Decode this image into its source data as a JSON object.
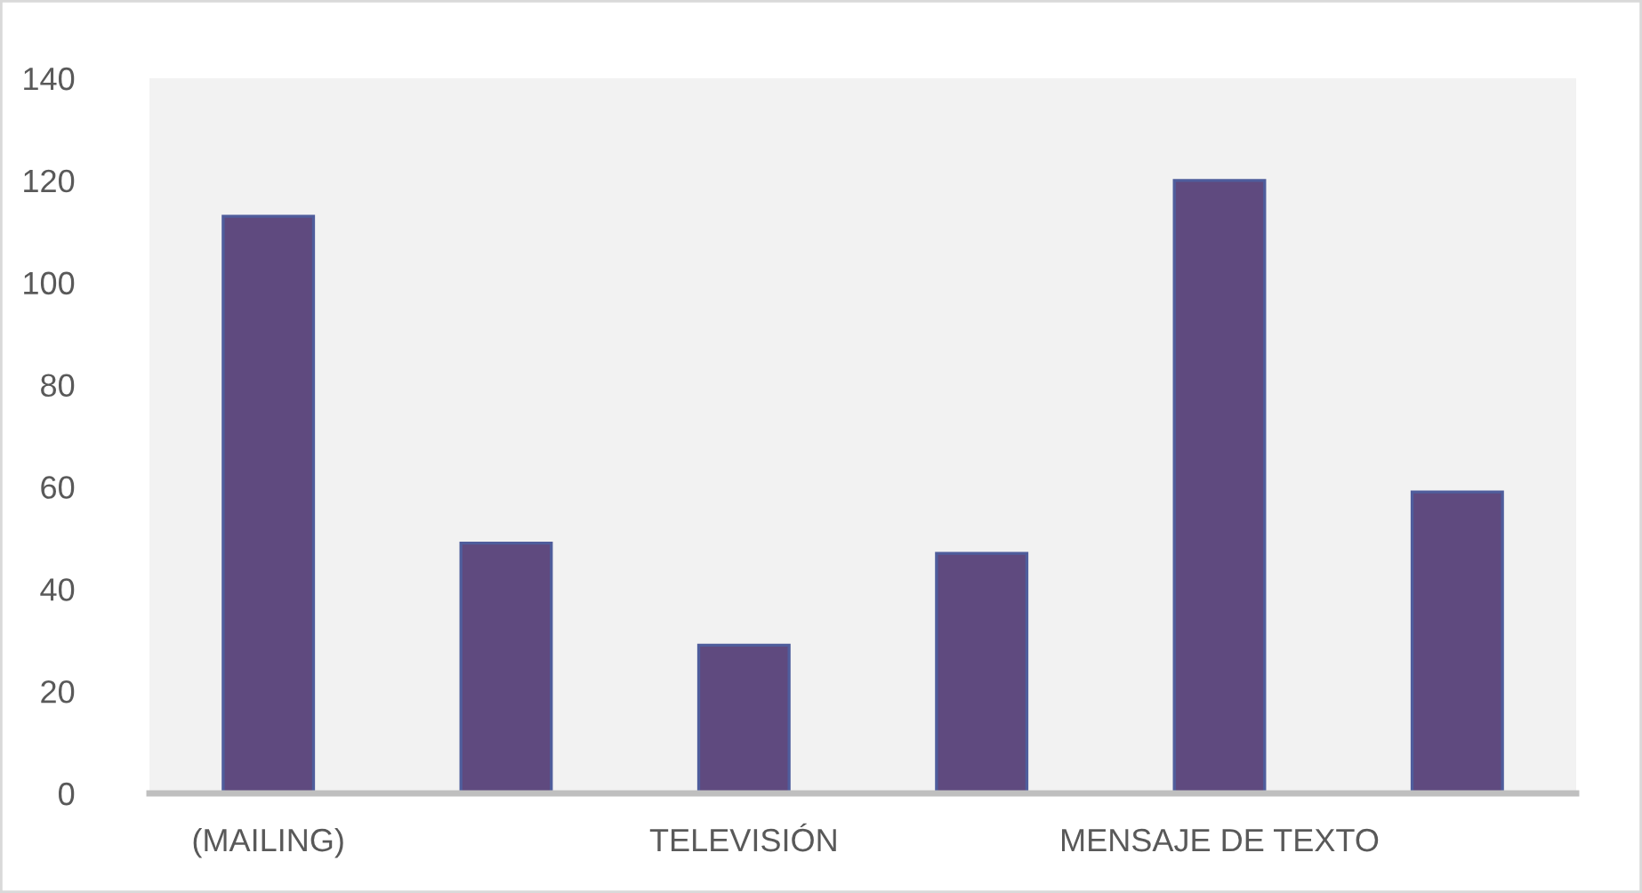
{
  "chart_data": {
    "type": "bar",
    "categories": [
      "(MAILING)",
      null,
      "TELEVISIÓN",
      null,
      "MENSAJE DE TEXTO",
      null
    ],
    "values": [
      113,
      49,
      29,
      47,
      120,
      59
    ],
    "color": "#5f4a7f",
    "ylim": [
      0,
      140
    ],
    "yticks": [
      0,
      20,
      40,
      60,
      80,
      100,
      120,
      140
    ],
    "grid": false
  }
}
